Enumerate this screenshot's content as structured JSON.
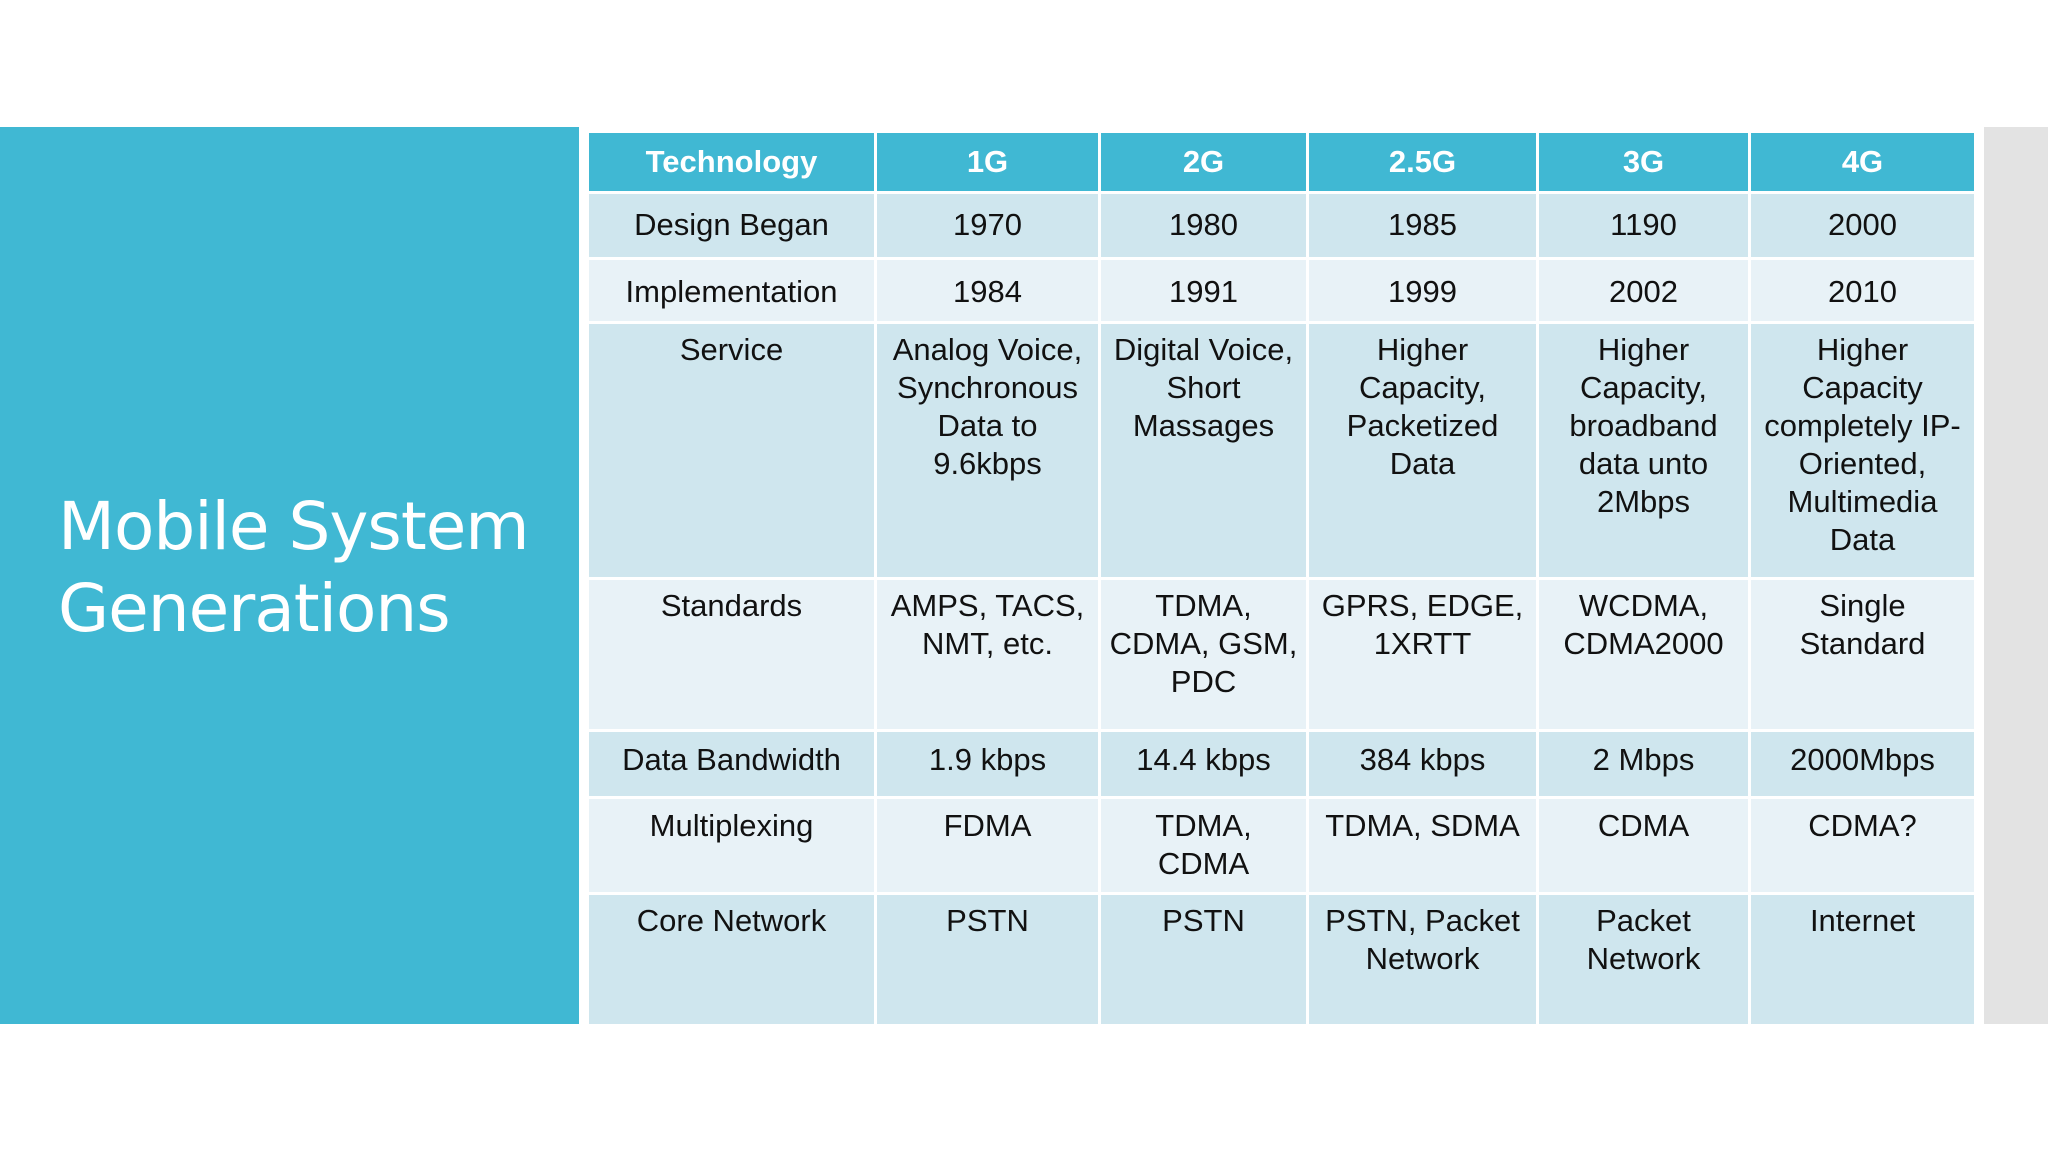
{
  "slide": {
    "title_line1": "Mobile System",
    "title_line2": "Generations"
  },
  "table": {
    "headers": [
      "Technology",
      "1G",
      "2G",
      "2.5G",
      "3G",
      "4G"
    ],
    "rows": [
      [
        "Design Began",
        "1970",
        "1980",
        "1985",
        "1190",
        "2000"
      ],
      [
        "Implementation",
        "1984",
        "1991",
        "1999",
        "2002",
        "2010"
      ],
      [
        "Service",
        "Analog Voice, Synchronous Data to 9.6kbps",
        "Digital Voice, Short Massages",
        "Higher Capacity, Packetized Data",
        "Higher Capacity, broadband data unto 2Mbps",
        "Higher Capacity completely IP-Oriented, Multimedia Data"
      ],
      [
        "Standards",
        "AMPS, TACS, NMT, etc.",
        "TDMA, CDMA, GSM, PDC",
        "GPRS, EDGE, 1XRTT",
        "WCDMA, CDMA2000",
        "Single Standard"
      ],
      [
        "Data Bandwidth",
        "1.9 kbps",
        "14.4 kbps",
        "384 kbps",
        "2 Mbps",
        "2000Mbps"
      ],
      [
        "Multiplexing",
        "FDMA",
        "TDMA, CDMA",
        "TDMA, SDMA",
        "CDMA",
        "CDMA?"
      ],
      [
        "Core Network",
        "PSTN",
        "PSTN",
        "PSTN, Packet Network",
        "Packet Network",
        "Internet"
      ]
    ]
  },
  "colors": {
    "accent": "#40b8d3",
    "row_dark": "#cfe6ee",
    "row_light": "#e8f2f7",
    "side_strip": "#e3e3e3"
  }
}
